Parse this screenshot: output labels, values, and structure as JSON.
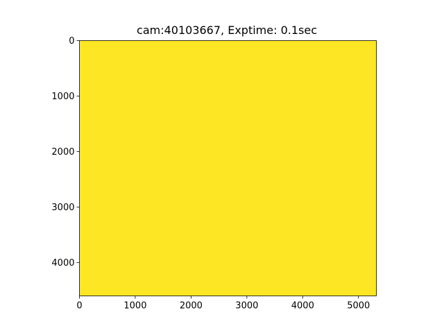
{
  "chart_data": {
    "type": "heatmap",
    "title": "cam:40103667, Exptime: 0.1sec",
    "xlabel": "",
    "ylabel": "",
    "image_extent": {
      "x": [
        0,
        5320
      ],
      "y": [
        0,
        4600
      ]
    },
    "x_ticks": [
      {
        "value": 0,
        "label": "0"
      },
      {
        "value": 1000,
        "label": "1000"
      },
      {
        "value": 2000,
        "label": "2000"
      },
      {
        "value": 3000,
        "label": "3000"
      },
      {
        "value": 4000,
        "label": "4000"
      },
      {
        "value": 5000,
        "label": "5000"
      }
    ],
    "y_ticks": [
      {
        "value": 0,
        "label": "0"
      },
      {
        "value": 1000,
        "label": "1000"
      },
      {
        "value": 2000,
        "label": "2000"
      },
      {
        "value": 3000,
        "label": "3000"
      },
      {
        "value": 4000,
        "label": "4000"
      }
    ],
    "y_inverted": true,
    "grid": false,
    "fill_color": "#fde725"
  }
}
